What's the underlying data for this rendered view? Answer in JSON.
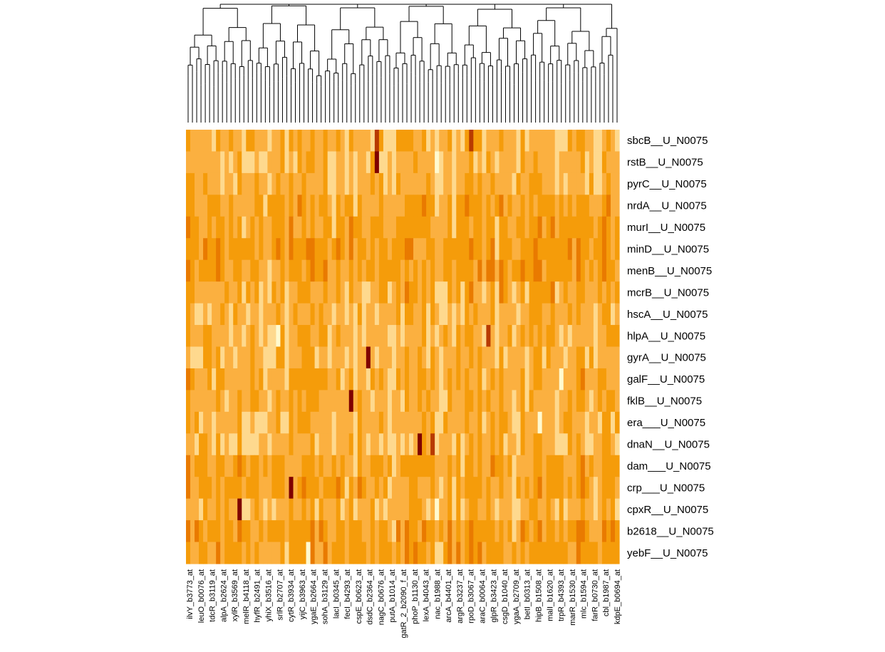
{
  "chart_data": {
    "type": "heatmap",
    "title": "",
    "xlabel": "",
    "ylabel": "",
    "color_scale": [
      "#fffad0",
      "#fed98e",
      "#fbb040",
      "#f59c0a",
      "#e97a00",
      "#b83a00",
      "#7f0000"
    ],
    "dendrogram": "columns",
    "rows": [
      "sbcB__U_N0075",
      "rstB__U_N0075",
      "pyrC__U_N0075",
      "nrdA__U_N0075",
      "murI__U_N0075",
      "minD__U_N0075",
      "menB__U_N0075",
      "mcrB__U_N0075",
      "hscA__U_N0075",
      "hlpA__U_N0075",
      "gyrA__U_N0075",
      "galF__U_N0075",
      "fklB__U_N0075",
      "era___U_N0075",
      "dnaN__U_N0075",
      "dam___U_N0075",
      "crp___U_N0075",
      "cpxR__U_N0075",
      "b2618__U_N0075",
      "yebF__U_N0075"
    ],
    "column_labels": [
      "ilvY_b3773_at",
      "leuO_b0076_at",
      "tdcR_b3119_at",
      "alpA_b2624_at",
      "xylR_b3569_at",
      "melR_b4118_at",
      "hyfR_b2491_at",
      "yhiX_b3516_at",
      "srlR_b2707_at",
      "cytR_b3934_at",
      "yijC_b3963_at",
      "ygaE_b2664_at",
      "sohA_b3129_at",
      "lacI_b0345_at",
      "fecI_b4293_at",
      "cspE_b0623_at",
      "dsdC_b2364_at",
      "nagC_b0676_at",
      "putA_b1014_at",
      "gatR_2_b2090_f_at",
      "phoP_b1130_at",
      "lexA_b4043_at",
      "nac_b1988_at",
      "arcA_b4401_at",
      "argR_b3237_at",
      "rpoD_b3067_at",
      "araC_b0064_at",
      "glpR_b3423_at",
      "csgD_b1040_at",
      "ygaA_b2709_at",
      "betI_b0313_at",
      "hipB_b1508_at",
      "malI_b1620_at",
      "trpR_b4393_at",
      "marR_b1530_at",
      "mlc_b1594_at",
      "farR_b0730_at",
      "cbl_b1987_at",
      "kdpE_b0694_at"
    ],
    "n_columns": 101,
    "dark_cells": [
      {
        "row": "sbcB__U_N0075",
        "col_index": 44,
        "level": 5
      },
      {
        "row": "sbcB__U_N0075",
        "col_index": 66,
        "level": 5
      },
      {
        "row": "rstB__U_N0075",
        "col_index": 44,
        "level": 6
      },
      {
        "row": "gyrA__U_N0075",
        "col_index": 42,
        "level": 6
      },
      {
        "row": "fklB__U_N0075",
        "col_index": 38,
        "level": 6
      },
      {
        "row": "dnaN__U_N0075",
        "col_index": 54,
        "level": 6
      },
      {
        "row": "dnaN__U_N0075",
        "col_index": 57,
        "level": 5
      },
      {
        "row": "crp___U_N0075",
        "col_index": 24,
        "level": 6
      },
      {
        "row": "cpxR__U_N0075",
        "col_index": 12,
        "level": 6
      },
      {
        "row": "hlpA__U_N0075",
        "col_index": 70,
        "level": 5
      }
    ],
    "light_cells": [
      {
        "row": "galF__U_N0075",
        "col_index": 87,
        "level": 0
      },
      {
        "row": "era___U_N0075",
        "col_index": 82,
        "level": 0
      },
      {
        "row": "hlpA__U_N0075",
        "col_index": 21,
        "level": 0
      },
      {
        "row": "yebF__U_N0075",
        "col_index": 28,
        "level": 0
      }
    ]
  }
}
